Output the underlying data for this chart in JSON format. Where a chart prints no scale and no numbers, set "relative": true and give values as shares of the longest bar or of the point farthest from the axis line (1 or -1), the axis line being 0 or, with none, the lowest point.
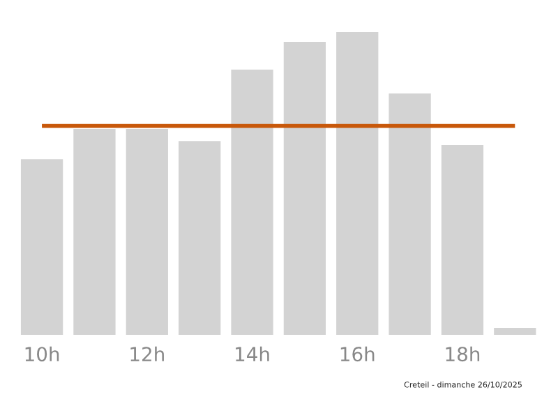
{
  "chart_data": {
    "type": "bar",
    "relative": true,
    "categories": [
      "10h",
      null,
      "12h",
      null,
      "14h",
      null,
      "16h",
      null,
      "18h",
      null
    ],
    "values": [
      0.58,
      0.68,
      0.68,
      0.64,
      0.876,
      0.968,
      1,
      0.797,
      0.627,
      0.023
    ],
    "color": "#d3d3d3",
    "ref_lines": [
      {
        "axis": "y",
        "value": 0.69,
        "color": "#c8580a"
      }
    ],
    "grid": false,
    "legend": false,
    "annotations": [
      "Creteil - dimanche 26/10/2025"
    ]
  }
}
